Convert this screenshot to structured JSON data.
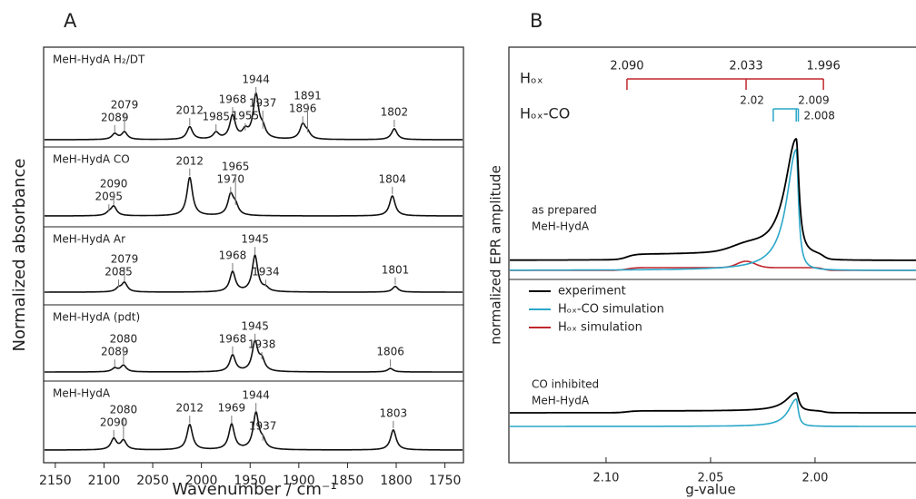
{
  "panel_labels": [
    "A",
    "B"
  ],
  "chart_data": [
    {
      "type": "ir-stack",
      "xlabel": "Wavenumber / cm⁻¹",
      "ylabel": "Normalized absorbance",
      "xlim": [
        2162,
        1731
      ],
      "xticks": [
        2150,
        2100,
        2050,
        2000,
        1950,
        1900,
        1850,
        1800,
        1750
      ],
      "spectra": [
        {
          "name": "MeH-HydA H₂/DT",
          "peaks": [
            2089,
            2079,
            2012,
            1985,
            1968,
            1955,
            1944,
            1937,
            1896,
            1891,
            1802
          ],
          "intensities": [
            0.13,
            0.17,
            0.29,
            0.15,
            0.54,
            0.17,
            1,
            0.21,
            0.33,
            0.13,
            0.25
          ],
          "label_colors": [
            "#222222",
            "#e8221b",
            "#1aa6e0",
            "#5ea121",
            "#222222",
            "#5ea121",
            "#e8221b",
            "#e51ee0",
            "#5ea121",
            "#5ea121",
            "#222222"
          ]
        },
        {
          "name": "MeH-HydA CO",
          "peaks": [
            2095,
            2090,
            2012,
            1970,
            1965,
            1804
          ],
          "intensities": [
            0.06,
            0.21,
            0.88,
            0.46,
            0.21,
            0.46
          ],
          "label_colors": [
            "#1aa6e0",
            "#1aa6e0",
            "#1aa6e0",
            "#1aa6e0",
            "#1aa6e0",
            "#1aa6e0"
          ]
        },
        {
          "name": "MeH-HydA Ar",
          "peaks": [
            2085,
            2079,
            1968,
            1945,
            1934,
            1801
          ],
          "intensities": [
            0.08,
            0.21,
            0.46,
            0.83,
            0.08,
            0.13
          ],
          "label_colors": [
            "#e8221b",
            "#e8221b",
            "#222222",
            "#222222",
            "#222222",
            "#e8221b"
          ]
        },
        {
          "name": "MeH-HydA (pdt)",
          "peaks": [
            2089,
            2080,
            1968,
            1945,
            1938,
            1806
          ],
          "intensities": [
            0.08,
            0.15,
            0.38,
            0.67,
            0.25,
            0.08
          ],
          "label_colors": [
            "#e8221b",
            "#e8221b",
            "#e8221b",
            "#e8221b",
            "#e51ee0",
            "#e8221b"
          ]
        },
        {
          "name": "MeH-HydA",
          "peaks": [
            2090,
            2080,
            2012,
            1969,
            1944,
            1937,
            1803
          ],
          "intensities": [
            0.25,
            0.21,
            0.58,
            0.58,
            0.83,
            0.17,
            0.46
          ],
          "label_colors": [
            "#222222",
            "#e8221b",
            "#1aa6e0",
            "#222222",
            "#e8221b",
            "#e51ee0",
            "#222222"
          ]
        }
      ]
    },
    {
      "type": "epr",
      "xlabel": "g-value",
      "ylabel": "normalized EPR amplitude",
      "xlim": [
        2.1465,
        1.9517
      ],
      "xticks": [
        {
          "value": 2.1,
          "label": "2.10"
        },
        {
          "value": 2.05,
          "label": "2.05"
        },
        {
          "value": 2.0,
          "label": "2.00"
        }
      ],
      "markers": [
        {
          "name": "Hₒₓ",
          "color": "#c0272d",
          "values": [
            2.09,
            2.033,
            1.996
          ],
          "value_labels": [
            "2.090",
            "2.033",
            "1.996"
          ]
        },
        {
          "name": "Hₒₓ-CO",
          "color": "#2aa7c9",
          "values": [
            2.02,
            2.009,
            2.008
          ]
        }
      ],
      "series": [
        {
          "name": "experiment",
          "color": "#000000"
        },
        {
          "name": "Hₒₓ-CO simulation",
          "color": "#2aa7c9"
        },
        {
          "name": "Hₒₓ simulation",
          "color": "#c0272d"
        }
      ],
      "annotations": [
        [
          "as prepared",
          "MeH-HydA"
        ],
        [
          "CO inhibited",
          "MeH-HydA"
        ]
      ]
    }
  ]
}
